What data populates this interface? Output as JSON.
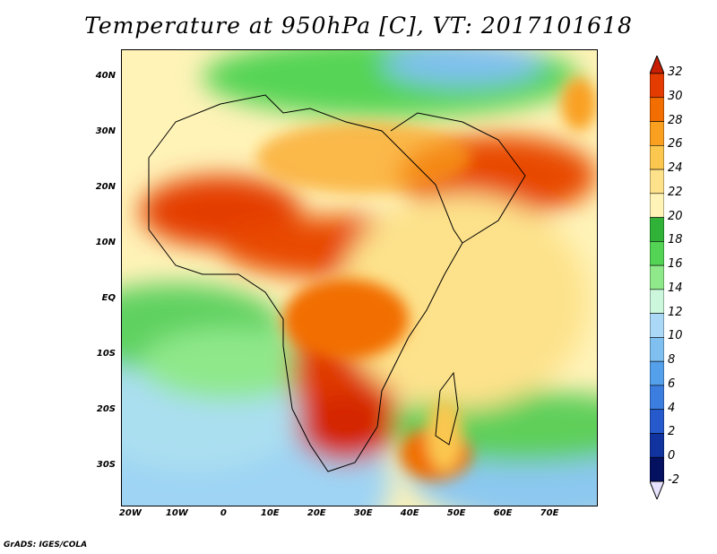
{
  "title": "Temperature at 950hPa [C], VT: 2017101618",
  "credit": "GrADS: IGES/COLA",
  "map": {
    "lon_range": [
      -22,
      80
    ],
    "lat_range": [
      -37,
      45
    ],
    "lat_ticks": [
      {
        "value": 40,
        "label": "40N"
      },
      {
        "value": 30,
        "label": "30N"
      },
      {
        "value": 20,
        "label": "20N"
      },
      {
        "value": 10,
        "label": "10N"
      },
      {
        "value": 0,
        "label": "EQ"
      },
      {
        "value": -10,
        "label": "10S"
      },
      {
        "value": -20,
        "label": "20S"
      },
      {
        "value": -30,
        "label": "30S"
      }
    ],
    "lon_ticks": [
      {
        "value": -20,
        "label": "20W"
      },
      {
        "value": -10,
        "label": "10W"
      },
      {
        "value": 0,
        "label": "0"
      },
      {
        "value": 10,
        "label": "10E"
      },
      {
        "value": 20,
        "label": "20E"
      },
      {
        "value": 30,
        "label": "30E"
      },
      {
        "value": 40,
        "label": "40E"
      },
      {
        "value": 50,
        "label": "50E"
      },
      {
        "value": 60,
        "label": "60E"
      },
      {
        "value": 70,
        "label": "70E"
      }
    ]
  },
  "colorbar": {
    "levels": [
      "32",
      "30",
      "28",
      "26",
      "24",
      "22",
      "20",
      "18",
      "16",
      "14",
      "12",
      "10",
      "8",
      "6",
      "4",
      "2",
      "0",
      "-2"
    ],
    "colors": [
      "#c81e00",
      "#e43c00",
      "#f26e00",
      "#f9a020",
      "#fbc74f",
      "#fde28b",
      "#fff3b8",
      "#2fb237",
      "#54d455",
      "#8fe88a",
      "#ccf7dc",
      "#aad8f6",
      "#7fc0f0",
      "#55a0ea",
      "#3c7ee0",
      "#2559cc",
      "#1033a0",
      "#041060"
    ],
    "under_color": "#e7e2ff",
    "over_color": "#c81e00"
  }
}
